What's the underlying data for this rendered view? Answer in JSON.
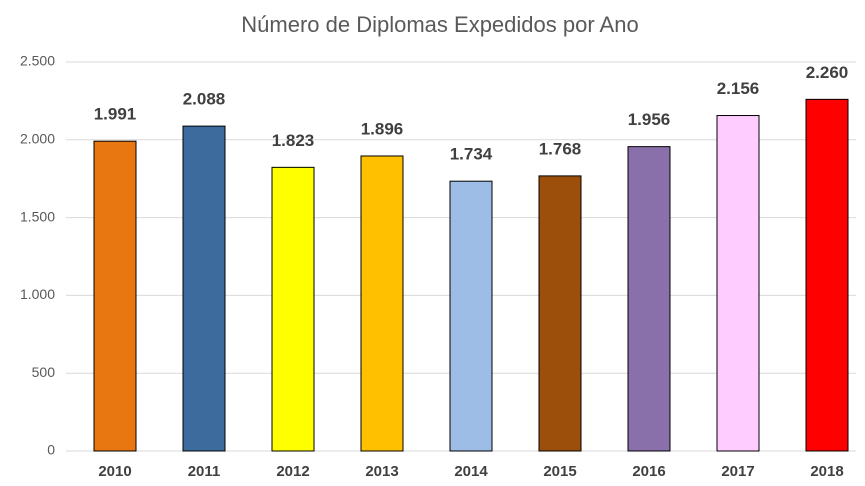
{
  "chart_data": {
    "type": "bar",
    "title": "Número de Diplomas Expedidos por Ano",
    "categories": [
      "2010",
      "2011",
      "2012",
      "2013",
      "2014",
      "2015",
      "2016",
      "2017",
      "2018"
    ],
    "values": [
      1991,
      2088,
      1823,
      1896,
      1734,
      1768,
      1956,
      2156,
      2260
    ],
    "value_labels": [
      "1.991",
      "2.088",
      "1.823",
      "1.896",
      "1.734",
      "1.768",
      "1.956",
      "2.156",
      "2.260"
    ],
    "colors": [
      "#e97711",
      "#3e6b9e",
      "#ffff00",
      "#ffc000",
      "#9dbde6",
      "#9c4f0b",
      "#8a70ab",
      "#ffccff",
      "#ff0000"
    ],
    "ylim": [
      0,
      2500
    ],
    "yticks": [
      0,
      500,
      {
        "value": 1000,
        "label": "1.000"
      },
      {
        "value": 1500,
        "label": "1.500"
      },
      {
        "value": 2000,
        "label": "2.000"
      },
      {
        "value": 2500,
        "label": "2.500"
      }
    ],
    "grid": true
  }
}
